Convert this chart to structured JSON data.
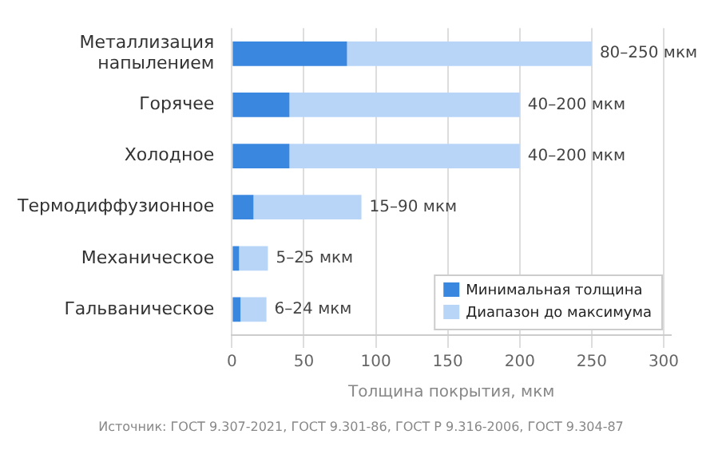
{
  "chart_data": {
    "type": "bar",
    "orientation": "horizontal",
    "stacked": true,
    "categories": [
      "Металлизация напылением",
      "Горячее",
      "Холодное",
      "Термодиффузионное",
      "Механическое",
      "Гальваническое"
    ],
    "series": [
      {
        "name": "Минимальная толщина",
        "color": "#3a87e0",
        "values": [
          80,
          40,
          40,
          15,
          5,
          6
        ]
      },
      {
        "name": "Диапазон до максимума",
        "color": "#b8d5f8",
        "values": [
          170,
          160,
          160,
          75,
          20,
          18
        ]
      }
    ],
    "xlim": [
      0,
      305
    ],
    "xticks": [
      0,
      50,
      100,
      150,
      200,
      250,
      300
    ],
    "grid": "x",
    "legend": "bottom right",
    "xlabel": "Толщина покрытия, мкм",
    "annotations": [
      {
        "text": "80–250 мкм",
        "x": 250,
        "y": "Металлизация напылением"
      },
      {
        "text": "40–200 мкм",
        "x": 200,
        "y": "Горячее"
      },
      {
        "text": "40–200 мкм",
        "x": 200,
        "y": "Холодное"
      },
      {
        "text": "15–90 мкм",
        "x": 90,
        "y": "Термодиффузионное"
      },
      {
        "text": "5–25 мкм",
        "x": 25,
        "y": "Механическое"
      },
      {
        "text": "6–24 мкм",
        "x": 24,
        "y": "Гальваническое"
      },
      "Источник: ГОСТ 9.307-2021, ГОСТ 9.301-86, ГОСТ Р 9.316-2006, ГОСТ 9.304-87"
    ]
  }
}
